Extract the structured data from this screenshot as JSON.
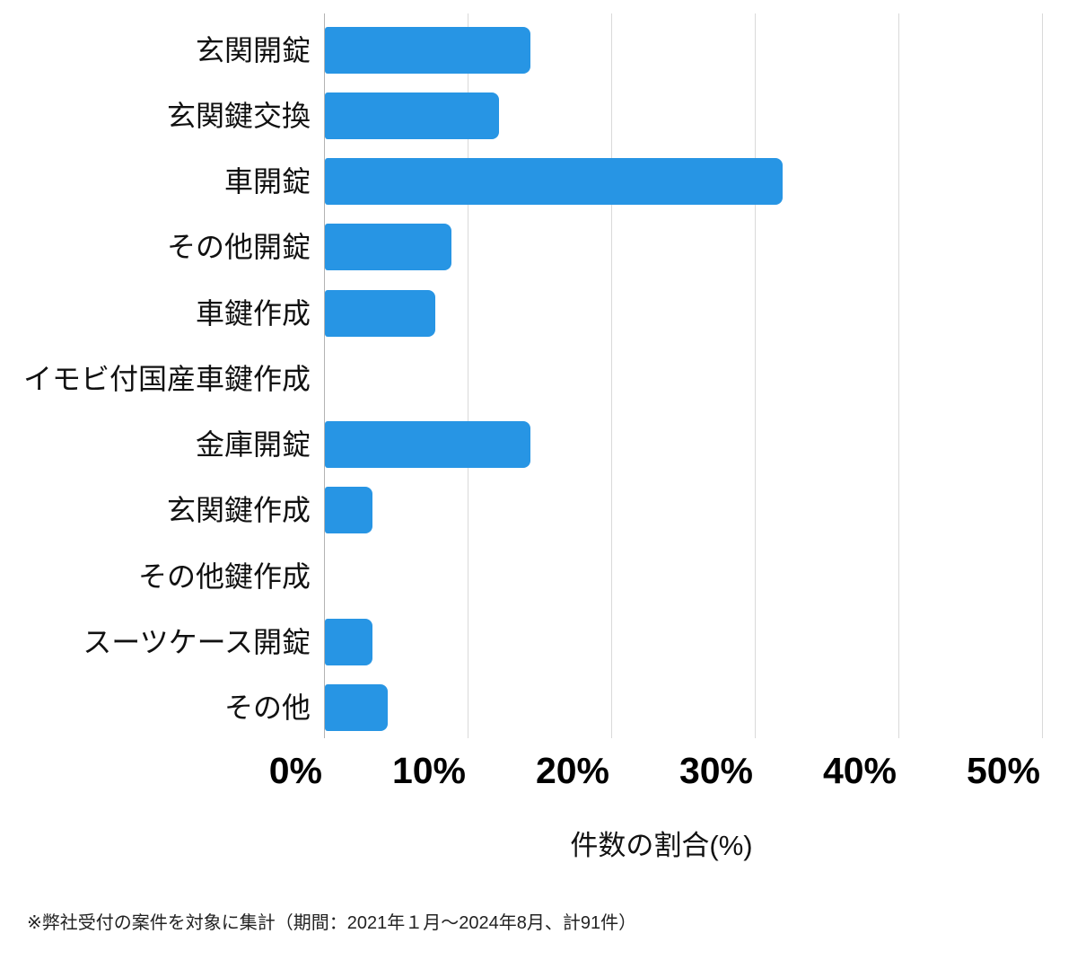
{
  "chart_data": {
    "type": "bar",
    "orientation": "horizontal",
    "title": "",
    "xlabel": "件数の割合(%)",
    "ylabel": "",
    "xlim": [
      0,
      50
    ],
    "x_ticks": [
      "0%",
      "10%",
      "20%",
      "30%",
      "40%",
      "50%"
    ],
    "grid": true,
    "legend_position": "none",
    "bar_color": "#2795E4",
    "gridline_color": "#d9d9d9",
    "axis_line_color": "#b3b3b3",
    "categories": [
      "玄関開錠",
      "玄関鍵交換",
      "車開錠",
      "その他開錠",
      "車鍵作成",
      "イモビ付国産車鍵作成",
      "金庫開錠",
      "玄関鍵作成",
      "その他鍵作成",
      "スーツケース開錠",
      "その他"
    ],
    "values": [
      14.3,
      12.1,
      31.9,
      8.8,
      7.7,
      0,
      14.3,
      3.3,
      0,
      3.3,
      4.4
    ]
  },
  "footnote": "※弊社受付の案件を対象に集計（期間：2021年１月～2024年8月、計91件）"
}
